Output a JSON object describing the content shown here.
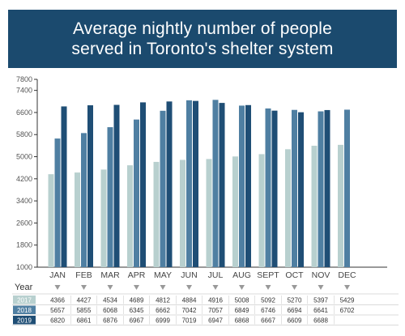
{
  "chart_data": {
    "type": "bar",
    "title": "Average nightly number of people served in Toronto's shelter system",
    "title_lines": [
      "Average nightly number of people",
      "served in Toronto's shelter system"
    ],
    "categories": [
      "JAN",
      "FEB",
      "MAR",
      "APR",
      "MAY",
      "JUN",
      "JUL",
      "AUG",
      "SEPT",
      "OCT",
      "NOV",
      "DEC"
    ],
    "series": [
      {
        "name": "2017",
        "color": "#b8d0cf",
        "values": [
          4366,
          4427,
          4534,
          4689,
          4812,
          4884,
          4916,
          5008,
          5092,
          5270,
          5397,
          5429
        ]
      },
      {
        "name": "2018",
        "color": "#4f7fa2",
        "values": [
          5657,
          5855,
          6068,
          6345,
          6662,
          7042,
          7057,
          6849,
          6746,
          6694,
          6641,
          6702
        ]
      },
      {
        "name": "2019",
        "color": "#1f4e75",
        "values": [
          6820,
          6861,
          6876,
          6967,
          6999,
          7019,
          6947,
          6868,
          6667,
          6609,
          6688,
          null
        ]
      }
    ],
    "yticks": [
      1000,
      1800,
      2600,
      3400,
      4200,
      5000,
      5800,
      6600,
      7400,
      7800
    ],
    "ylim": [
      1000,
      7800
    ],
    "table_header": "Year",
    "grid": false
  },
  "colors": {
    "header_bg": "#1b4a6e",
    "axis": "#333333",
    "arrow": "#999999"
  }
}
